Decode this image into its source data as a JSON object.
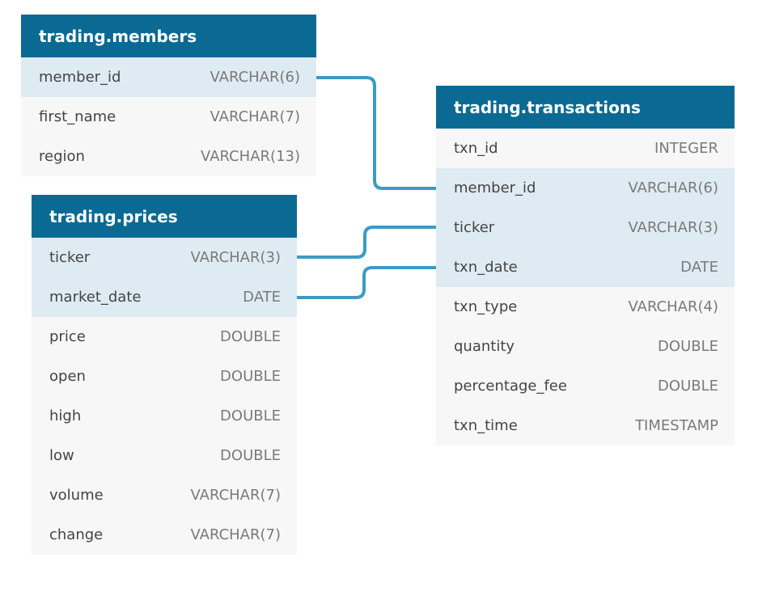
{
  "colors": {
    "header_bg": "#0a6a93",
    "header_text": "#ffffff",
    "key_row_bg": "#deebf3",
    "row_bg": "#f7f7f7",
    "connector": "#3d9ac6"
  },
  "tables": {
    "members": {
      "title": "trading.members",
      "columns": [
        {
          "name": "member_id",
          "type": "VARCHAR(6)",
          "highlighted": true
        },
        {
          "name": "first_name",
          "type": "VARCHAR(7)",
          "highlighted": false
        },
        {
          "name": "region",
          "type": "VARCHAR(13)",
          "highlighted": false
        }
      ]
    },
    "prices": {
      "title": "trading.prices",
      "columns": [
        {
          "name": "ticker",
          "type": "VARCHAR(3)",
          "highlighted": true
        },
        {
          "name": "market_date",
          "type": "DATE",
          "highlighted": true
        },
        {
          "name": "price",
          "type": "DOUBLE",
          "highlighted": false
        },
        {
          "name": "open",
          "type": "DOUBLE",
          "highlighted": false
        },
        {
          "name": "high",
          "type": "DOUBLE",
          "highlighted": false
        },
        {
          "name": "low",
          "type": "DOUBLE",
          "highlighted": false
        },
        {
          "name": "volume",
          "type": "VARCHAR(7)",
          "highlighted": false
        },
        {
          "name": "change",
          "type": "VARCHAR(7)",
          "highlighted": false
        }
      ]
    },
    "transactions": {
      "title": "trading.transactions",
      "columns": [
        {
          "name": "txn_id",
          "type": "INTEGER",
          "highlighted": false
        },
        {
          "name": "member_id",
          "type": "VARCHAR(6)",
          "highlighted": true
        },
        {
          "name": "ticker",
          "type": "VARCHAR(3)",
          "highlighted": true
        },
        {
          "name": "txn_date",
          "type": "DATE",
          "highlighted": true
        },
        {
          "name": "txn_type",
          "type": "VARCHAR(4)",
          "highlighted": false
        },
        {
          "name": "quantity",
          "type": "DOUBLE",
          "highlighted": false
        },
        {
          "name": "percentage_fee",
          "type": "DOUBLE",
          "highlighted": false
        },
        {
          "name": "txn_time",
          "type": "TIMESTAMP",
          "highlighted": false
        }
      ]
    }
  },
  "relationships": [
    {
      "from": "trading.members.member_id",
      "to": "trading.transactions.member_id"
    },
    {
      "from": "trading.prices.ticker",
      "to": "trading.transactions.ticker"
    },
    {
      "from": "trading.prices.market_date",
      "to": "trading.transactions.txn_date"
    }
  ]
}
